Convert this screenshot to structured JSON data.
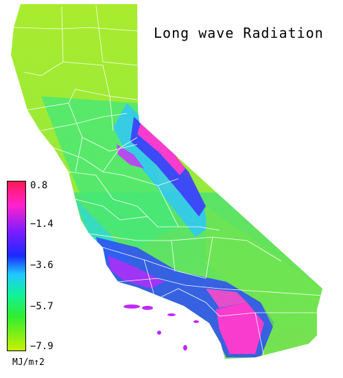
{
  "map": {
    "title": "Long wave Radiation",
    "legend": {
      "ticks": [
        "0.8",
        "−1.4",
        "−3.6",
        "−5.7",
        "−7.9"
      ],
      "unit": "MJ/m↑2",
      "colors": [
        "#ff1a55",
        "#ff22cc",
        "#7a1cff",
        "#1a2aff",
        "#20c8ff",
        "#10f0a0",
        "#30ee30",
        "#c8f000"
      ]
    },
    "colors": {
      "north_green": "#9ef22a",
      "central_valley": "#38ec6c",
      "coast_cyan": "#20d8f0",
      "sierra_blue": "#2a3cff",
      "peaks_magenta": "#ff30d0",
      "desert_green": "#60e850",
      "county_lines": "#ffffff"
    }
  }
}
